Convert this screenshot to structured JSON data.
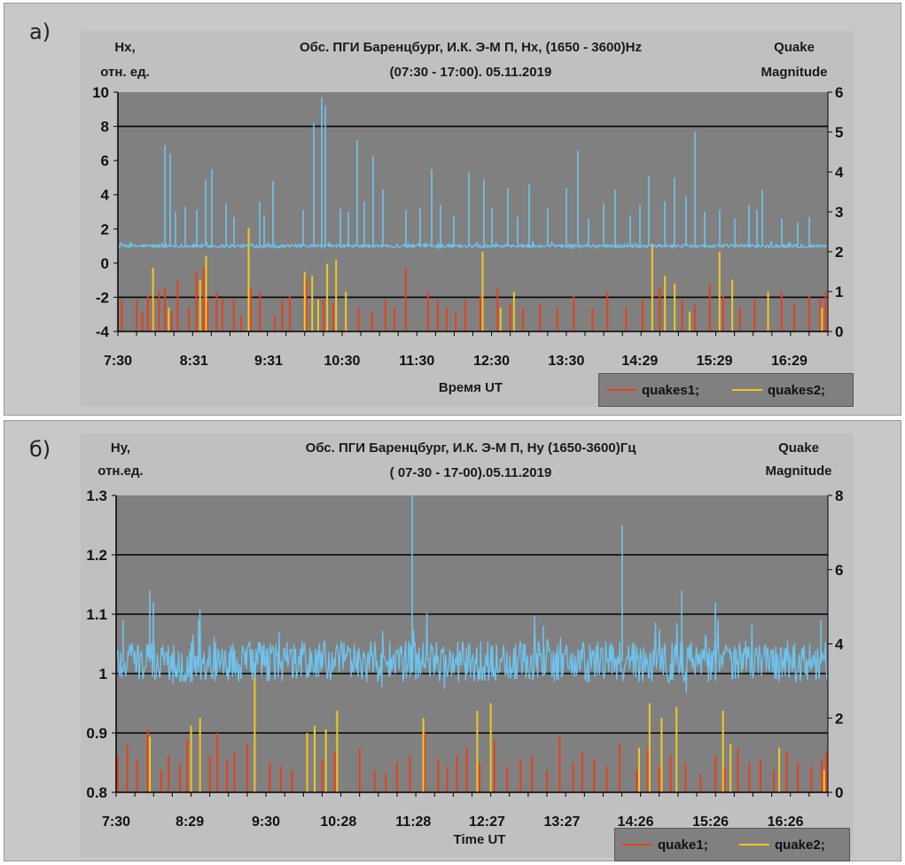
{
  "colors": {
    "plot_bg": "#808080",
    "signal": "#6ec3ec",
    "quakes1": "#e8401c",
    "quakes2": "#f0c81e",
    "panel": "#c8c8c8"
  },
  "panel_a": {
    "letter": "а)",
    "left_label_line1": "Hx,",
    "left_label_line2": "отн. ед.",
    "title_line1": "Обс. ПГИ Баренцбург, И.К. Э-М П, Hx, (1650 - 3600)Hz",
    "title_line2": "(07:30 - 17:00). 05.11.2019",
    "right_label_line1": "Quake",
    "right_label_line2": "Magnitude",
    "xlabel": "Время UT",
    "legend": {
      "series1": "quakes1;",
      "series2": "quakes2;"
    }
  },
  "panel_b": {
    "letter": "б)",
    "left_label_line1": "Hy,",
    "left_label_line2": "отн.ед.",
    "title_line1": "Обс. ПГИ Баренцбург, И.К. Э-М П, Hy (1650-3600)Гц",
    "title_line2": "( 07-30 - 17-00).05.11.2019",
    "right_label_line1": "Quake",
    "right_label_line2": "Magnitude",
    "xlabel": "Time UT",
    "legend": {
      "series1": "quake1;",
      "series2": "quake2;"
    }
  },
  "chart_data": [
    {
      "type": "line",
      "id": "hx",
      "title": "Обс. ПГИ Баренцбург, И.К. Э-М П, Hx, (1650 - 3600)Hz (07:30 - 17:00). 05.11.2019",
      "xlabel": "Время UT",
      "ylabel": "Hx, отн. ед.",
      "y2label": "Quake Magnitude",
      "ylim": [
        -4,
        10
      ],
      "y_ticks": [
        10,
        8,
        6,
        4,
        2,
        0,
        -2,
        -4
      ],
      "y_tick_labels": [
        "10",
        "8",
        "6",
        "4",
        "2",
        "0",
        "-2",
        "-4"
      ],
      "y2lim": [
        0,
        6
      ],
      "y2_ticks": [
        6,
        5,
        4,
        3,
        2,
        1,
        0
      ],
      "y2_tick_labels": [
        "6",
        "5",
        "4",
        "3",
        "2",
        "1",
        "0"
      ],
      "xlim": [
        7.5,
        17.0
      ],
      "x_tick_labels": [
        "7:30",
        "8:31",
        "9:31",
        "10:30",
        "11:30",
        "12:30",
        "13:30",
        "14:29",
        "15:29",
        "16:29"
      ],
      "x_tick_hours": [
        7.5,
        8.517,
        9.517,
        10.5,
        11.5,
        12.5,
        13.5,
        14.483,
        15.483,
        16.483
      ],
      "gridlines": [
        8,
        -2
      ],
      "signal": {
        "name": "Hx",
        "baseline": 1.0,
        "noise": 0.1,
        "spikes": [
          {
            "t": 8.13,
            "v": 6.9
          },
          {
            "t": 8.2,
            "v": 6.4
          },
          {
            "t": 8.27,
            "v": 3.0
          },
          {
            "t": 8.4,
            "v": 3.3
          },
          {
            "t": 8.55,
            "v": 3.1
          },
          {
            "t": 8.68,
            "v": 4.9
          },
          {
            "t": 8.76,
            "v": 5.5
          },
          {
            "t": 8.95,
            "v": 3.5
          },
          {
            "t": 9.05,
            "v": 2.7
          },
          {
            "t": 9.4,
            "v": 3.6
          },
          {
            "t": 9.46,
            "v": 2.8
          },
          {
            "t": 9.57,
            "v": 4.8
          },
          {
            "t": 9.98,
            "v": 3.1
          },
          {
            "t": 10.12,
            "v": 8.2
          },
          {
            "t": 10.23,
            "v": 9.7
          },
          {
            "t": 10.27,
            "v": 9.2
          },
          {
            "t": 10.48,
            "v": 3.2
          },
          {
            "t": 10.58,
            "v": 3.0
          },
          {
            "t": 10.7,
            "v": 7.2
          },
          {
            "t": 10.8,
            "v": 3.6
          },
          {
            "t": 10.92,
            "v": 6.3
          },
          {
            "t": 11.05,
            "v": 4.3
          },
          {
            "t": 11.35,
            "v": 3.1
          },
          {
            "t": 11.55,
            "v": 3.2
          },
          {
            "t": 11.7,
            "v": 5.5
          },
          {
            "t": 11.82,
            "v": 3.4
          },
          {
            "t": 12.0,
            "v": 2.8
          },
          {
            "t": 12.2,
            "v": 5.3
          },
          {
            "t": 12.4,
            "v": 4.9
          },
          {
            "t": 12.5,
            "v": 3.2
          },
          {
            "t": 12.72,
            "v": 4.4
          },
          {
            "t": 12.85,
            "v": 2.7
          },
          {
            "t": 13.0,
            "v": 4.6
          },
          {
            "t": 13.25,
            "v": 3.2
          },
          {
            "t": 13.5,
            "v": 4.4
          },
          {
            "t": 13.65,
            "v": 6.6
          },
          {
            "t": 13.8,
            "v": 2.6
          },
          {
            "t": 14.0,
            "v": 3.5
          },
          {
            "t": 14.15,
            "v": 4.3
          },
          {
            "t": 14.35,
            "v": 2.8
          },
          {
            "t": 14.48,
            "v": 3.4
          },
          {
            "t": 14.6,
            "v": 5.1
          },
          {
            "t": 14.82,
            "v": 3.6
          },
          {
            "t": 14.95,
            "v": 5.0
          },
          {
            "t": 15.1,
            "v": 3.9
          },
          {
            "t": 15.22,
            "v": 7.7
          },
          {
            "t": 15.35,
            "v": 3.0
          },
          {
            "t": 15.55,
            "v": 3.1
          },
          {
            "t": 15.75,
            "v": 2.6
          },
          {
            "t": 15.95,
            "v": 3.4
          },
          {
            "t": 16.05,
            "v": 3.1
          },
          {
            "t": 16.12,
            "v": 4.3
          },
          {
            "t": 16.38,
            "v": 2.6
          },
          {
            "t": 16.6,
            "v": 2.4
          },
          {
            "t": 16.75,
            "v": 2.7
          }
        ]
      },
      "series": [
        {
          "name": "quakes1",
          "color": "#e8401c",
          "x": [
            7.55,
            7.75,
            7.83,
            7.9,
            7.96,
            8.05,
            8.13,
            8.22,
            8.3,
            8.45,
            8.55,
            8.65,
            8.7,
            8.82,
            8.9,
            9.05,
            9.15,
            9.28,
            9.4,
            9.6,
            9.7,
            9.8,
            10.02,
            10.25,
            10.38,
            10.55,
            10.72,
            10.9,
            11.08,
            11.2,
            11.35,
            11.65,
            11.78,
            11.9,
            12.02,
            12.15,
            12.35,
            12.58,
            12.75,
            12.92,
            13.15,
            13.38,
            13.6,
            13.85,
            14.05,
            14.3,
            14.52,
            14.75,
            15.05,
            15.22,
            15.42,
            15.6,
            15.82,
            16.02,
            16.2,
            16.38,
            16.55,
            16.75,
            16.9,
            16.97
          ],
          "magnitude": [
            0.8,
            0.8,
            0.5,
            0.9,
            0.8,
            1.0,
            1.1,
            0.5,
            1.3,
            0.6,
            1.5,
            1.6,
            0.8,
            1.0,
            0.8,
            0.8,
            0.4,
            1.1,
            1.0,
            0.4,
            0.8,
            0.9,
            1.3,
            0.8,
            0.7,
            0.6,
            0.6,
            0.5,
            0.8,
            0.6,
            1.6,
            1.0,
            0.8,
            0.6,
            0.5,
            0.8,
            0.9,
            1.1,
            0.7,
            0.6,
            0.7,
            0.6,
            0.9,
            0.6,
            1.0,
            0.6,
            0.8,
            1.1,
            0.8,
            0.7,
            1.2,
            0.9,
            0.6,
            0.8,
            0.6,
            1.0,
            0.7,
            0.9,
            0.8,
            1.0
          ]
        },
        {
          "name": "quakes2",
          "color": "#f0c81e",
          "x": [
            7.97,
            8.18,
            8.6,
            8.68,
            9.25,
            10.0,
            10.1,
            10.18,
            10.3,
            10.42,
            10.55,
            12.38,
            12.62,
            12.8,
            14.65,
            14.82,
            14.95,
            15.15,
            15.55,
            15.72,
            16.2,
            16.92
          ],
          "magnitude": [
            1.6,
            0.6,
            1.3,
            1.9,
            2.6,
            1.5,
            1.4,
            0.8,
            1.7,
            1.8,
            1.0,
            2.0,
            0.6,
            1.0,
            2.2,
            1.4,
            1.2,
            0.5,
            2.0,
            1.3,
            1.0,
            0.6
          ]
        }
      ],
      "legend": [
        "quakes1;",
        "quakes2;"
      ]
    },
    {
      "type": "line",
      "id": "hy",
      "title": "Обс. ПГИ Баренцбург, И.К. Э-М П, Hy (1650-3600)Гц ( 07-30 - 17-00).05.11.2019",
      "xlabel": "Time UT",
      "ylabel": "Hy, отн.ед.",
      "y2label": "Quake Magnitude",
      "ylim": [
        0.8,
        1.3
      ],
      "y_ticks": [
        1.3,
        1.2,
        1.1,
        1.0,
        0.9,
        0.8
      ],
      "y_tick_labels": [
        "1.3",
        "1.2",
        "1.1",
        "1",
        "0.9",
        "0.8"
      ],
      "y2lim": [
        0,
        8
      ],
      "y2_ticks": [
        8,
        6,
        4,
        2,
        0
      ],
      "y2_tick_labels": [
        "8",
        "6",
        "4",
        "2",
        "0"
      ],
      "xlim": [
        7.5,
        17.0
      ],
      "x_tick_labels": [
        "7:30",
        "8:29",
        "9:30",
        "10:28",
        "11:28",
        "12:27",
        "13:27",
        "14:26",
        "15:26",
        "16:26"
      ],
      "x_tick_hours": [
        7.5,
        8.483,
        9.5,
        10.467,
        11.467,
        12.45,
        13.45,
        14.433,
        15.433,
        16.433
      ],
      "gridlines": [
        1.2,
        1.1,
        1.0,
        0.9
      ],
      "signal": {
        "name": "Hy",
        "baseline": 1.02,
        "noise": 0.035,
        "spikes": [
          {
            "t": 7.6,
            "v": 1.09
          },
          {
            "t": 7.95,
            "v": 1.14
          },
          {
            "t": 8.0,
            "v": 1.12
          },
          {
            "t": 8.6,
            "v": 1.09
          },
          {
            "t": 11.45,
            "v": 1.3
          },
          {
            "t": 13.2,
            "v": 1.08
          },
          {
            "t": 14.25,
            "v": 1.25
          },
          {
            "t": 15.05,
            "v": 1.14
          },
          {
            "t": 15.5,
            "v": 1.12
          },
          {
            "t": 16.9,
            "v": 1.09
          }
        ]
      },
      "series": [
        {
          "name": "quake1",
          "color": "#e8401c",
          "x": [
            7.52,
            7.65,
            7.78,
            7.92,
            8.1,
            8.2,
            8.35,
            8.45,
            8.62,
            8.75,
            8.85,
            8.98,
            9.08,
            9.25,
            9.55,
            9.7,
            9.85,
            10.05,
            10.25,
            10.42,
            10.75,
            10.95,
            11.1,
            11.25,
            11.42,
            11.62,
            11.8,
            11.92,
            12.05,
            12.18,
            12.35,
            12.55,
            12.72,
            12.9,
            13.05,
            13.25,
            13.42,
            13.6,
            13.72,
            13.88,
            14.05,
            14.22,
            14.45,
            14.6,
            14.75,
            14.9,
            15.1,
            15.3,
            15.5,
            15.62,
            15.8,
            15.95,
            16.1,
            16.28,
            16.45,
            16.6,
            16.78,
            16.92,
            16.98
          ],
          "magnitude": [
            1.0,
            1.3,
            0.9,
            1.7,
            0.6,
            1.0,
            0.8,
            1.4,
            1.6,
            1.0,
            1.6,
            0.9,
            1.1,
            1.3,
            0.8,
            0.7,
            0.6,
            1.4,
            0.9,
            1.1,
            1.2,
            0.6,
            0.5,
            0.8,
            1.0,
            1.6,
            0.9,
            0.7,
            1.0,
            1.2,
            0.8,
            1.4,
            0.7,
            0.9,
            1.0,
            0.6,
            1.5,
            0.8,
            1.1,
            0.9,
            0.7,
            1.3,
            0.6,
            1.2,
            0.7,
            1.0,
            0.8,
            0.5,
            1.0,
            0.7,
            1.2,
            0.8,
            0.9,
            0.6,
            1.1,
            0.8,
            0.7,
            0.9,
            1.1
          ]
        },
        {
          "name": "quake2",
          "color": "#f0c81e",
          "x": [
            7.95,
            8.5,
            8.62,
            9.35,
            10.05,
            10.15,
            10.3,
            10.45,
            11.6,
            12.32,
            12.5,
            14.48,
            14.62,
            14.78,
            14.98,
            15.6,
            15.7,
            16.35,
            16.95
          ],
          "magnitude": [
            1.5,
            1.8,
            2.0,
            3.5,
            1.6,
            1.8,
            1.7,
            2.2,
            2.0,
            2.2,
            2.4,
            1.2,
            2.4,
            2.0,
            2.3,
            2.2,
            1.3,
            1.2,
            0.6
          ]
        }
      ],
      "legend": [
        "quake1;",
        "quake2;"
      ]
    }
  ]
}
